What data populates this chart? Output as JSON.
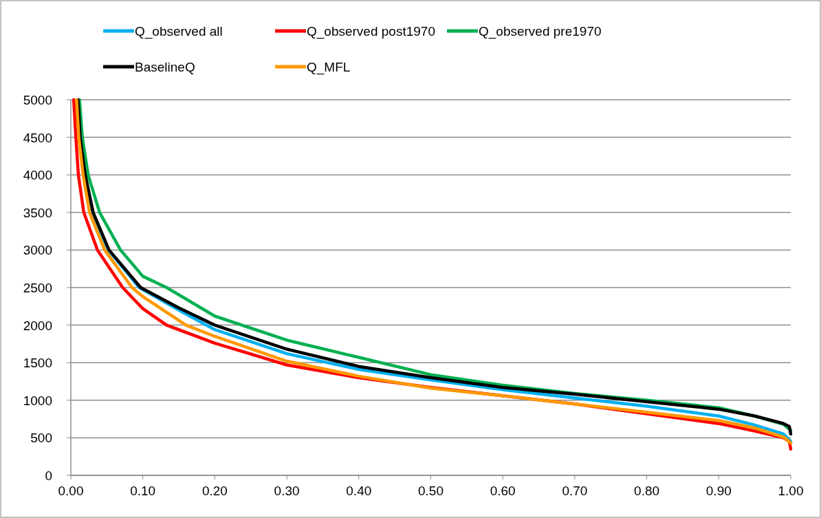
{
  "chart_data": {
    "type": "line",
    "xlim": [
      0,
      1
    ],
    "ylim": [
      0,
      5000
    ],
    "xticks": [
      {
        "value": 0,
        "label": "0.00"
      },
      {
        "value": 0.1,
        "label": "0.10"
      },
      {
        "value": 0.2,
        "label": "0.20"
      },
      {
        "value": 0.3,
        "label": "0.30"
      },
      {
        "value": 0.4,
        "label": "0.40"
      },
      {
        "value": 0.5,
        "label": "0.50"
      },
      {
        "value": 0.6,
        "label": "0.60"
      },
      {
        "value": 0.7,
        "label": "0.70"
      },
      {
        "value": 0.8,
        "label": "0.80"
      },
      {
        "value": 0.9,
        "label": "0.90"
      },
      {
        "value": 1,
        "label": "1.00"
      }
    ],
    "yticks": [
      0,
      500,
      1000,
      1500,
      2000,
      2500,
      3000,
      3500,
      4000,
      4500,
      5000
    ],
    "grid": "y",
    "legend": "top",
    "marker": "none",
    "line_style": "solid",
    "series": [
      {
        "name": "Q_observed all",
        "color": "#00b0f0",
        "x": [
          0.02,
          0.03,
          0.052,
          0.095,
          0.15,
          0.2,
          0.3,
          0.4,
          0.5,
          0.6,
          0.7,
          0.8,
          0.9,
          0.95,
          0.99,
          1.0
        ],
        "values": [
          4000,
          3500,
          3000,
          2500,
          2200,
          1940,
          1620,
          1410,
          1270,
          1140,
          1030,
          920,
          790,
          670,
          550,
          450
        ]
      },
      {
        "name": "Q_observed post1970",
        "color": "#ff0000",
        "x": [
          0.004,
          0.007,
          0.0105,
          0.018,
          0.037,
          0.072,
          0.1,
          0.133,
          0.2,
          0.3,
          0.4,
          0.5,
          0.6,
          0.7,
          0.8,
          0.9,
          0.95,
          0.99,
          0.998,
          1.0
        ],
        "values": [
          5000,
          4500,
          4000,
          3500,
          3000,
          2500,
          2220,
          2000,
          1760,
          1470,
          1300,
          1170,
          1060,
          950,
          820,
          690,
          590,
          500,
          450,
          350
        ]
      },
      {
        "name": "Q_observed pre1970",
        "color": "#00b050",
        "x": [
          0.012,
          0.016,
          0.024,
          0.04,
          0.069,
          0.1,
          0.133,
          0.2,
          0.3,
          0.4,
          0.5,
          0.6,
          0.7,
          0.8,
          0.9,
          0.95,
          0.99,
          1.0
        ],
        "values": [
          5000,
          4500,
          4000,
          3500,
          3000,
          2650,
          2500,
          2120,
          1800,
          1570,
          1340,
          1200,
          1090,
          1000,
          900,
          790,
          680,
          600
        ]
      },
      {
        "name": "BaselineQ",
        "color": "#000000",
        "x": [
          0.01,
          0.013,
          0.02,
          0.031,
          0.053,
          0.097,
          0.15,
          0.2,
          0.3,
          0.4,
          0.5,
          0.6,
          0.7,
          0.8,
          0.9,
          0.95,
          0.99,
          0.998,
          1.0
        ],
        "values": [
          5000,
          4500,
          4000,
          3500,
          3000,
          2500,
          2230,
          2000,
          1680,
          1450,
          1300,
          1170,
          1080,
          980,
          880,
          790,
          690,
          650,
          550
        ]
      },
      {
        "name": "Q_MFL",
        "color": "#ff9900",
        "x": [
          0.008,
          0.011,
          0.017,
          0.026,
          0.047,
          0.085,
          0.1,
          0.16,
          0.2,
          0.3,
          0.4,
          0.5,
          0.6,
          0.7,
          0.8,
          0.9,
          0.95,
          0.99,
          1.0
        ],
        "values": [
          5000,
          4500,
          4000,
          3500,
          3000,
          2500,
          2380,
          2000,
          1850,
          1520,
          1320,
          1160,
          1060,
          950,
          840,
          730,
          630,
          510,
          430
        ]
      }
    ]
  }
}
